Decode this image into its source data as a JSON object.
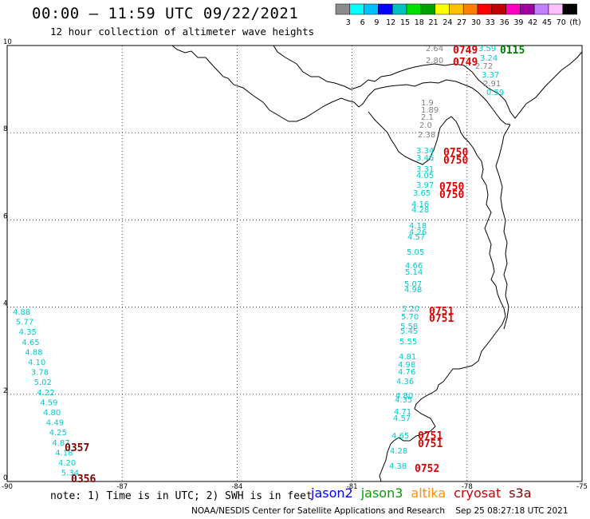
{
  "title": "00:00 – 11:59 UTC 09/22/2021",
  "subtitle": "12 hour collection of altimeter wave heights",
  "colorbar": {
    "colors": [
      "#8c8c8c",
      "#00ffff",
      "#00bfff",
      "#0000ff",
      "#00c0c0",
      "#00e000",
      "#00a000",
      "#ffff00",
      "#ffc000",
      "#ff8000",
      "#ff0000",
      "#c00000",
      "#ff00c0",
      "#a000a0",
      "#c080ff",
      "#ffc0ff",
      "#000000"
    ],
    "labels": [
      "3",
      "6",
      "9",
      "12",
      "15",
      "18",
      "21",
      "24",
      "27",
      "30",
      "33",
      "36",
      "39",
      "42",
      "45",
      "70",
      "(ft)"
    ]
  },
  "axes": {
    "x_ticks": [
      "-90",
      "-87",
      "-84",
      "-81",
      "-78",
      "-75"
    ],
    "y_ticks": [
      "0",
      "2",
      "4",
      "6",
      "8",
      "10"
    ]
  },
  "tracks": [
    {
      "color": "#00cccc",
      "values": [
        "4.88",
        "5.77",
        "4.35",
        "4.65",
        "4.88",
        "4.10",
        "3.78",
        "5.02",
        "4.22",
        "4.59",
        "4.80",
        "4.49",
        "4.25",
        "4.87",
        "4.18",
        "4.20",
        "5.34"
      ]
    },
    {
      "color": "#00cccc",
      "values": [
        "3.34",
        "3.46",
        "3.31",
        "4.05",
        "3.97",
        "3.65",
        "4.16",
        "4.28",
        "4.18",
        "4.26",
        "4.57",
        "5.05",
        "4.66",
        "5.14",
        "5.07",
        "4.98",
        "5.20",
        "5.70",
        "5.58",
        "5.45",
        "5.55",
        "4.81",
        "4.98",
        "4.76",
        "4.36",
        "4.80",
        "4.35",
        "4.71",
        "4.57",
        "4.65",
        "4.28",
        "4.38"
      ]
    },
    {
      "color": "#808080",
      "values": [
        "2.64",
        "2.80",
        "2.72",
        "2.91",
        "1.9",
        "1.89",
        "2.1",
        "2.0",
        "2.38"
      ]
    },
    {
      "color": "#00cccc",
      "values": [
        "3.59",
        "3.24",
        "3.37",
        "0.59"
      ]
    }
  ],
  "times": [
    {
      "text": "0749",
      "color": "#e00000"
    },
    {
      "text": "0749",
      "color": "#e00000"
    },
    {
      "text": "0115",
      "color": "#008000"
    },
    {
      "text": "0750",
      "color": "#e00000"
    },
    {
      "text": "0750",
      "color": "#e00000"
    },
    {
      "text": "0750",
      "color": "#e00000"
    },
    {
      "text": "0750",
      "color": "#e00000"
    },
    {
      "text": "0751",
      "color": "#e00000"
    },
    {
      "text": "0751",
      "color": "#e00000"
    },
    {
      "text": "0751",
      "color": "#e00000"
    },
    {
      "text": "0751",
      "color": "#e00000"
    },
    {
      "text": "0752",
      "color": "#e00000"
    },
    {
      "text": "0357",
      "color": "#800000"
    },
    {
      "text": "0356",
      "color": "#800000"
    }
  ],
  "note": "note: 1) Time is in UTC; 2) SWH is in feet",
  "legend": [
    {
      "name": "jason2",
      "color": "#0000ff"
    },
    {
      "name": "jason3",
      "color": "#00a000"
    },
    {
      "name": "altika",
      "color": "#ff9000"
    },
    {
      "name": "cryosat",
      "color": "#d00000"
    },
    {
      "name": "s3a",
      "color": "#800000"
    }
  ],
  "footer": "NOAA/NESDIS Center for Satellite Applications and Research    Sep 25 08:27:18 UTC 2021"
}
